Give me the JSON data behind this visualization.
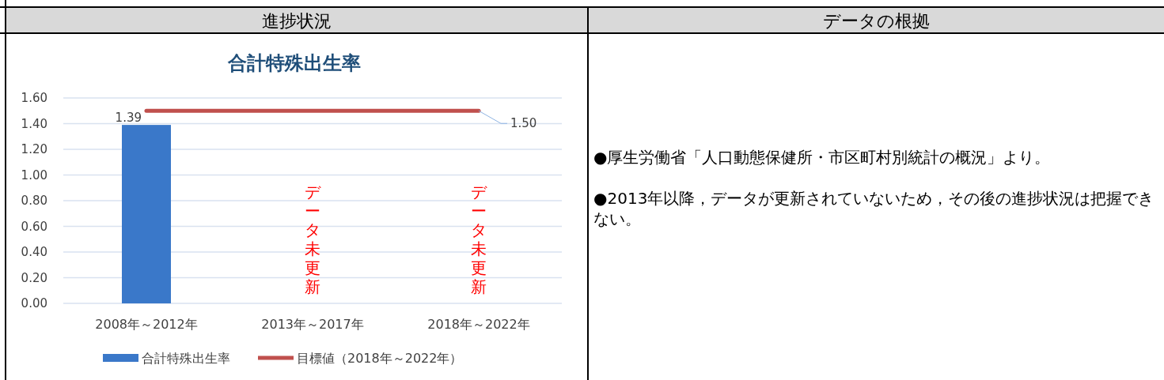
{
  "chart_data": {
    "type": "bar",
    "title": "合計特殊出生率",
    "categories": [
      "2008年～2012年",
      "2013年～2017年",
      "2018年～2022年"
    ],
    "series": [
      {
        "name": "合計特殊出生率",
        "color": "#3a78c9",
        "values": [
          1.39,
          null,
          null
        ],
        "value_labels": [
          "1.39",
          null,
          null
        ]
      },
      {
        "name": "目標値（2018年～2022年）",
        "type": "line",
        "color": "#c0504d",
        "values": [
          1.5,
          1.5,
          1.5
        ],
        "value_labels": [
          null,
          null,
          "1.50"
        ]
      }
    ],
    "ylim": [
      0,
      1.6
    ],
    "yticks": [
      {
        "value": 0,
        "label": "0.00"
      },
      {
        "value": 0.2,
        "label": "0.20"
      },
      {
        "value": 0.4,
        "label": "0.40"
      },
      {
        "value": 0.6,
        "label": "0.60"
      },
      {
        "value": 0.8,
        "label": "0.80"
      },
      {
        "value": 1.0,
        "label": "1.00"
      },
      {
        "value": 1.2,
        "label": "1.20"
      },
      {
        "value": 1.4,
        "label": "1.40"
      },
      {
        "value": 1.6,
        "label": "1.60"
      }
    ],
    "grid": "y",
    "legend": "bottom",
    "annotations": [
      "進捗状況",
      "データの根拠",
      "●厚生労働省「人口動態保健所・市区町村別統計の概況」より。",
      "●2013年以降，データが更新されていないため，その後の進捗状況は把握できない。",
      "データ未更新",
      "データ未更新"
    ]
  }
}
